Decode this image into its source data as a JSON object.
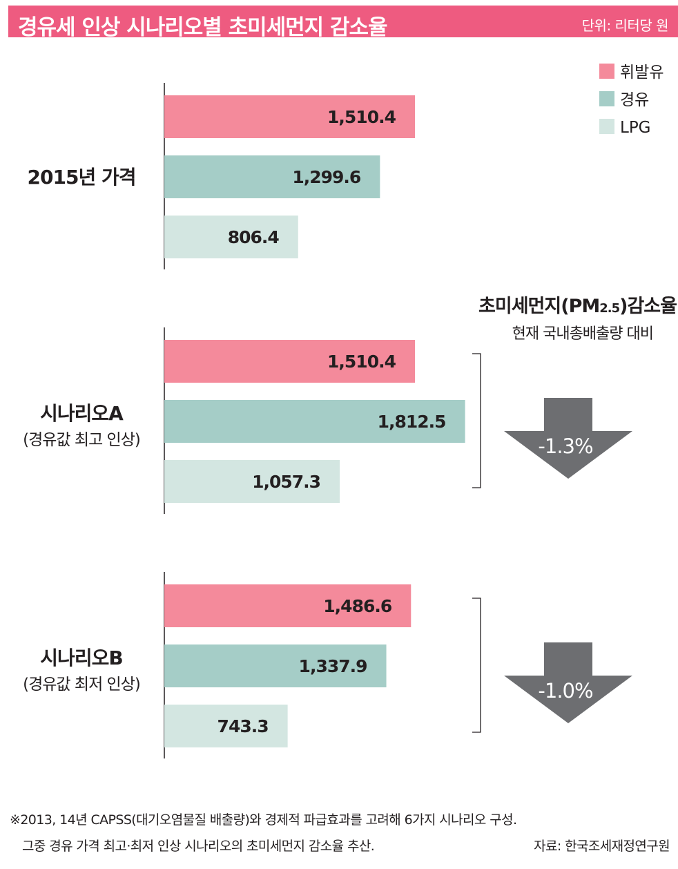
{
  "header": {
    "title": "경유세 인상 시나리오별 초미세먼지 감소율",
    "unit": "단위: 리터당 원"
  },
  "colors": {
    "header_bg": "#ee5b80",
    "gasoline": "#f48a9b",
    "diesel": "#a5cdc7",
    "lpg": "#d3e6e1",
    "arrow": "#6d6e71"
  },
  "pm_panel": {
    "title_main": "초미세먼지(PM",
    "title_subscript": "2.5",
    "title_end": ")감소율",
    "subtitle": "현재 국내총배출량 대비"
  },
  "chart_data": {
    "type": "bar",
    "orientation": "horizontal",
    "categories": [
      "2015년 가격",
      "시나리오A",
      "시나리오B"
    ],
    "category_subtitles": [
      "",
      "(경유값 최고 인상)",
      "(경유값 최저 인상)"
    ],
    "series": [
      {
        "name": "휘발유",
        "values": [
          1510.4,
          1510.4,
          1486.6
        ],
        "labels": [
          "1,510.4",
          "1,510.4",
          "1,486.6"
        ]
      },
      {
        "name": "경유",
        "values": [
          1299.6,
          1812.5,
          1337.9
        ],
        "labels": [
          "1,299.6",
          "1,812.5",
          "1,337.9"
        ]
      },
      {
        "name": "LPG",
        "values": [
          806.4,
          1057.3,
          743.3
        ],
        "labels": [
          "806.4",
          "1,057.3",
          "743.3"
        ]
      }
    ],
    "reductions": [
      "",
      "-1.3%",
      "-1.0%"
    ],
    "legend_position": "top-right",
    "grid": false,
    "xlim": [
      0,
      2000
    ]
  },
  "footnotes": {
    "line1": "※2013, 14년 CAPSS(대기오염물질 배출량)와 경제적 파급효과를 고려해 6가지 시나리오 구성.",
    "line2": "그중 경유 가격 최고·최저 인상 시나리오의 초미세먼지 감소율 추산.",
    "source": "자료: 한국조세재정연구원"
  }
}
